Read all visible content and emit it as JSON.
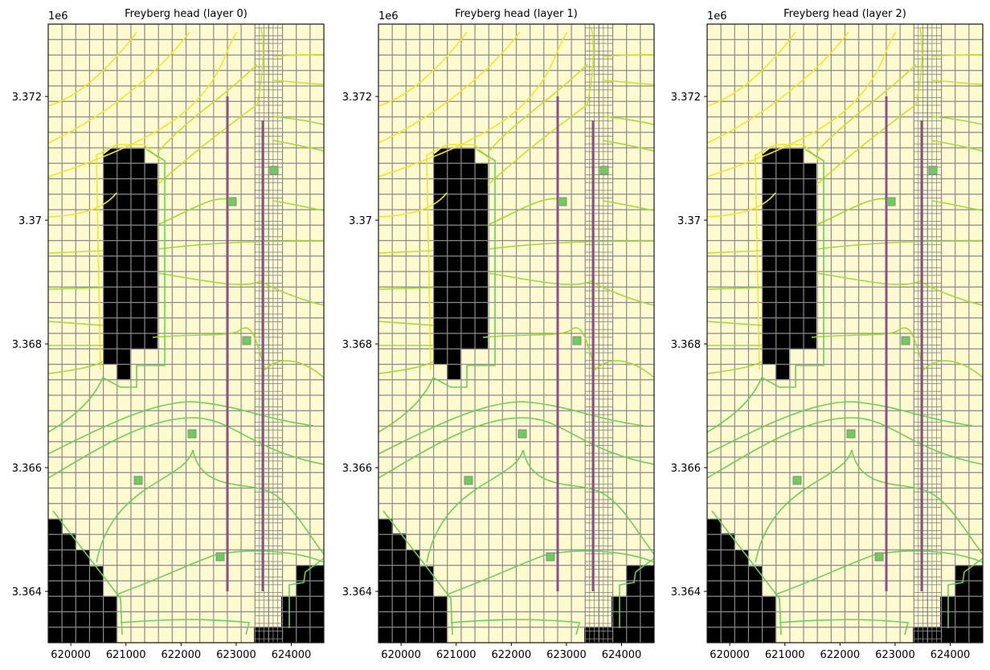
{
  "chart_data": [
    {
      "type": "contour",
      "title": "Freyberg head (layer 0)",
      "offset_label": "1e6",
      "xlim": [
        619590,
        624590
      ],
      "xticks": [
        620000,
        621000,
        622000,
        623000,
        624000
      ],
      "ylim": [
        3.36317,
        3.37317
      ],
      "yticks": [
        3.364,
        3.366,
        3.368,
        3.37,
        3.372
      ]
    },
    {
      "type": "contour",
      "title": "Freyberg head (layer 1)",
      "offset_label": "1e6",
      "xlim": [
        619590,
        624590
      ],
      "xticks": [
        620000,
        621000,
        622000,
        623000,
        624000
      ],
      "ylim": [
        3.36317,
        3.37317
      ],
      "yticks": [
        3.364,
        3.366,
        3.368,
        3.37,
        3.372
      ]
    },
    {
      "type": "contour",
      "title": "Freyberg head (layer 2)",
      "offset_label": "1e6",
      "xlim": [
        619590,
        624590
      ],
      "xticks": [
        620000,
        621000,
        622000,
        623000,
        624000
      ],
      "ylim": [
        3.36317,
        3.37317
      ],
      "yticks": [
        3.364,
        3.366,
        3.368,
        3.37,
        3.372
      ]
    }
  ]
}
